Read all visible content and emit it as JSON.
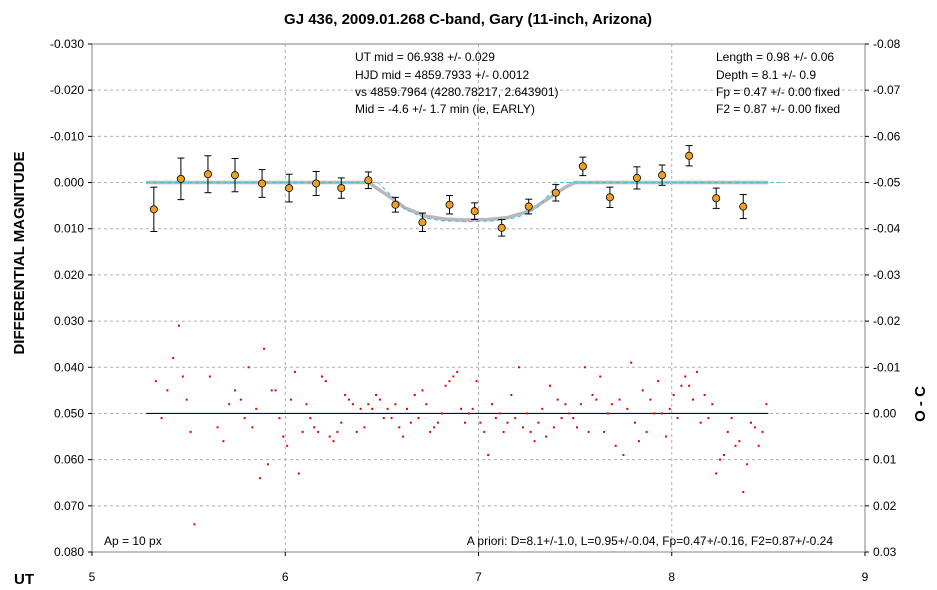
{
  "chart_data": {
    "type": "scatter",
    "title": "GJ 436, 2009.01.268 C-band, Gary (11-inch, Arizona)",
    "xlabel": "UT",
    "ylabel": "DIFFERENTIAL MAGNITUDE",
    "y2label": "O - C",
    "xlim": [
      5,
      9
    ],
    "ylim": [
      -0.03,
      0.08
    ],
    "y2lim": [
      -0.08,
      0.03
    ],
    "y_inverted": true,
    "grid": true,
    "x_ticks": [
      "5",
      "6",
      "7",
      "8",
      "9"
    ],
    "y_ticks": [
      "-0.030",
      "-0.020",
      "-0.010",
      "0.000",
      "0.010",
      "0.020",
      "0.030",
      "0.040",
      "0.050",
      "0.060",
      "0.070",
      "0.080"
    ],
    "y2_ticks": [
      "-0.08",
      "-0.07",
      "-0.06",
      "-0.05",
      "-0.04",
      "-0.03",
      "-0.02",
      "-0.01",
      "0.00",
      "0.01",
      "0.02",
      "0.03"
    ],
    "annotations": {
      "center": [
        "UT mid = 06.938 +/- 0.029",
        "HJD mid = 4859.7933 +/- 0.0012",
        "vs 4859.7964  (4280.78217, 2.643901)",
        "Mid = -4.6 +/- 1.7 min (ie, EARLY)"
      ],
      "right": [
        "Length = 0.98 +/- 0.06",
        "Depth = 8.1 +/- 0.9",
        "Fp = 0.47 +/- 0.00 fixed",
        "F2 = 0.87 +/- 0.00 fixed"
      ],
      "bottom_left": "Ap = 10 px",
      "bottom_right": "A priori: D=8.1+/-1.0, L=0.95+/-0.04, Fp=0.47+/-0.16, F2=0.87+/-0.24"
    },
    "colors": {
      "binned_points": "#f0a020",
      "model_fit": "#b8b8b8",
      "a_priori_model": "#40c0e0",
      "residual_points": "#e00000",
      "residual_zero_line": "#000080",
      "grid": "#b0b0b0"
    },
    "binned_points": [
      {
        "x": 5.32,
        "y": 0.0058,
        "err": 0.0048
      },
      {
        "x": 5.46,
        "y": -0.0008,
        "err": 0.0045
      },
      {
        "x": 5.6,
        "y": -0.0018,
        "err": 0.004
      },
      {
        "x": 5.74,
        "y": -0.0016,
        "err": 0.0036
      },
      {
        "x": 5.88,
        "y": 0.0002,
        "err": 0.003
      },
      {
        "x": 6.02,
        "y": 0.0012,
        "err": 0.003
      },
      {
        "x": 6.16,
        "y": 0.0002,
        "err": 0.0026
      },
      {
        "x": 6.29,
        "y": 0.0012,
        "err": 0.0022
      },
      {
        "x": 6.43,
        "y": -0.0005,
        "err": 0.0018
      },
      {
        "x": 6.57,
        "y": 0.0048,
        "err": 0.0016
      },
      {
        "x": 6.71,
        "y": 0.0086,
        "err": 0.002
      },
      {
        "x": 6.85,
        "y": 0.0048,
        "err": 0.002
      },
      {
        "x": 6.98,
        "y": 0.0062,
        "err": 0.0018
      },
      {
        "x": 7.12,
        "y": 0.0098,
        "err": 0.0018
      },
      {
        "x": 7.26,
        "y": 0.0052,
        "err": 0.0016
      },
      {
        "x": 7.4,
        "y": 0.0022,
        "err": 0.0018
      },
      {
        "x": 7.54,
        "y": -0.0035,
        "err": 0.002
      },
      {
        "x": 7.68,
        "y": 0.0032,
        "err": 0.0022
      },
      {
        "x": 7.82,
        "y": -0.001,
        "err": 0.0024
      },
      {
        "x": 7.95,
        "y": -0.0016,
        "err": 0.0022
      },
      {
        "x": 8.09,
        "y": -0.0058,
        "err": 0.0022
      },
      {
        "x": 8.23,
        "y": 0.0034,
        "err": 0.0022
      },
      {
        "x": 8.37,
        "y": 0.0052,
        "err": 0.0026
      }
    ],
    "model_fit": [
      [
        5.28,
        0.0
      ],
      [
        6.43,
        0.0
      ],
      [
        6.52,
        0.0025
      ],
      [
        6.62,
        0.0055
      ],
      [
        6.72,
        0.0072
      ],
      [
        6.82,
        0.0079
      ],
      [
        6.93,
        0.0081
      ],
      [
        7.05,
        0.008
      ],
      [
        7.15,
        0.0076
      ],
      [
        7.26,
        0.0062
      ],
      [
        7.36,
        0.0035
      ],
      [
        7.45,
        0.001
      ],
      [
        7.5,
        0.0
      ],
      [
        8.5,
        0.0
      ]
    ],
    "a_priori_model": [
      [
        5.28,
        0.0
      ],
      [
        6.48,
        0.0
      ],
      [
        6.62,
        0.0058
      ],
      [
        6.72,
        0.0077
      ],
      [
        6.82,
        0.0083
      ],
      [
        6.95,
        0.0085
      ],
      [
        7.08,
        0.0083
      ],
      [
        7.2,
        0.0076
      ],
      [
        7.3,
        0.0056
      ],
      [
        7.42,
        0.0
      ],
      [
        8.58,
        0.0
      ]
    ],
    "residuals_o_minus_c": [
      [
        5.33,
        -0.007
      ],
      [
        5.36,
        0.001
      ],
      [
        5.39,
        -0.005
      ],
      [
        5.42,
        -0.012
      ],
      [
        5.45,
        -0.019
      ],
      [
        5.47,
        -0.008
      ],
      [
        5.49,
        -0.003
      ],
      [
        5.51,
        0.004
      ],
      [
        5.53,
        0.024
      ],
      [
        5.61,
        -0.008
      ],
      [
        5.65,
        0.003
      ],
      [
        5.68,
        0.006
      ],
      [
        5.71,
        -0.002
      ],
      [
        5.74,
        -0.005
      ],
      [
        5.77,
        -0.003
      ],
      [
        5.79,
        0.001
      ],
      [
        5.81,
        -0.01
      ],
      [
        5.83,
        0.003
      ],
      [
        5.85,
        -0.001
      ],
      [
        5.87,
        0.014
      ],
      [
        5.89,
        -0.014
      ],
      [
        5.91,
        0.011
      ],
      [
        5.93,
        -0.005
      ],
      [
        5.95,
        -0.005
      ],
      [
        5.97,
        0.001
      ],
      [
        5.99,
        0.005
      ],
      [
        6.01,
        0.007
      ],
      [
        6.03,
        -0.003
      ],
      [
        6.05,
        -0.009
      ],
      [
        6.07,
        0.013
      ],
      [
        6.09,
        0.004
      ],
      [
        6.11,
        -0.002
      ],
      [
        6.13,
        0.001
      ],
      [
        6.15,
        0.003
      ],
      [
        6.17,
        0.004
      ],
      [
        6.19,
        -0.008
      ],
      [
        6.21,
        -0.007
      ],
      [
        6.23,
        0.005
      ],
      [
        6.25,
        0.006
      ],
      [
        6.27,
        0.004
      ],
      [
        6.29,
        0.002
      ],
      [
        6.31,
        -0.004
      ],
      [
        6.33,
        -0.003
      ],
      [
        6.35,
        -0.002
      ],
      [
        6.37,
        0.004
      ],
      [
        6.39,
        -0.001
      ],
      [
        6.41,
        0.003
      ],
      [
        6.43,
        -0.002
      ],
      [
        6.45,
        -0.001
      ],
      [
        6.47,
        -0.004
      ],
      [
        6.49,
        -0.003
      ],
      [
        6.51,
        0.001
      ],
      [
        6.53,
        -0.001
      ],
      [
        6.55,
        0.001
      ],
      [
        6.57,
        -0.002
      ],
      [
        6.59,
        0.003
      ],
      [
        6.61,
        0.005
      ],
      [
        6.63,
        -0.001
      ],
      [
        6.65,
        0.002
      ],
      [
        6.67,
        -0.004
      ],
      [
        6.69,
        0.001
      ],
      [
        6.71,
        -0.005
      ],
      [
        6.73,
        -0.002
      ],
      [
        6.75,
        0.004
      ],
      [
        6.77,
        0.003
      ],
      [
        6.79,
        0.002
      ],
      [
        6.81,
        0.0
      ],
      [
        6.83,
        -0.006
      ],
      [
        6.85,
        -0.007
      ],
      [
        6.87,
        -0.008
      ],
      [
        6.89,
        -0.009
      ],
      [
        6.91,
        -0.001
      ],
      [
        6.93,
        0.002
      ],
      [
        6.95,
        0.0
      ],
      [
        6.97,
        -0.001
      ],
      [
        6.99,
        -0.007
      ],
      [
        7.01,
        0.002
      ],
      [
        7.03,
        0.004
      ],
      [
        7.05,
        0.009
      ],
      [
        7.07,
        -0.002
      ],
      [
        7.09,
        0.001
      ],
      [
        7.11,
        0.0
      ],
      [
        7.13,
        0.004
      ],
      [
        7.15,
        0.002
      ],
      [
        7.17,
        -0.004
      ],
      [
        7.19,
        0.001
      ],
      [
        7.21,
        -0.01
      ],
      [
        7.23,
        0.003
      ],
      [
        7.25,
        0.0
      ],
      [
        7.27,
        0.004
      ],
      [
        7.29,
        0.006
      ],
      [
        7.31,
        0.002
      ],
      [
        7.33,
        -0.001
      ],
      [
        7.35,
        0.005
      ],
      [
        7.37,
        -0.006
      ],
      [
        7.39,
        0.003
      ],
      [
        7.41,
        -0.003
      ],
      [
        7.43,
        0.001
      ],
      [
        7.45,
        -0.002
      ],
      [
        7.47,
        0.0
      ],
      [
        7.49,
        0.001
      ],
      [
        7.51,
        0.003
      ],
      [
        7.53,
        -0.002
      ],
      [
        7.55,
        -0.01
      ],
      [
        7.57,
        0.004
      ],
      [
        7.59,
        -0.004
      ],
      [
        7.61,
        -0.003
      ],
      [
        7.63,
        -0.008
      ],
      [
        7.65,
        0.004
      ],
      [
        7.67,
        0.0
      ],
      [
        7.69,
        -0.002
      ],
      [
        7.71,
        0.007
      ],
      [
        7.73,
        -0.003
      ],
      [
        7.75,
        0.009
      ],
      [
        7.77,
        -0.001
      ],
      [
        7.79,
        -0.011
      ],
      [
        7.81,
        0.002
      ],
      [
        7.83,
        0.006
      ],
      [
        7.85,
        -0.005
      ],
      [
        7.87,
        0.004
      ],
      [
        7.89,
        -0.003
      ],
      [
        7.91,
        0.0
      ],
      [
        7.93,
        -0.007
      ],
      [
        7.95,
        0.0
      ],
      [
        7.97,
        0.005
      ],
      [
        7.99,
        -0.001
      ],
      [
        8.01,
        -0.004
      ],
      [
        8.03,
        0.001
      ],
      [
        8.05,
        -0.006
      ],
      [
        8.07,
        -0.008
      ],
      [
        8.09,
        -0.006
      ],
      [
        8.11,
        -0.003
      ],
      [
        8.13,
        -0.009
      ],
      [
        8.15,
        0.002
      ],
      [
        8.17,
        -0.004
      ],
      [
        8.19,
        0.001
      ],
      [
        8.21,
        -0.002
      ],
      [
        8.23,
        0.013
      ],
      [
        8.25,
        0.01
      ],
      [
        8.27,
        0.009
      ],
      [
        8.29,
        0.004
      ],
      [
        8.31,
        0.001
      ],
      [
        8.33,
        0.007
      ],
      [
        8.35,
        0.006
      ],
      [
        8.37,
        0.017
      ],
      [
        8.39,
        0.011
      ],
      [
        8.41,
        0.002
      ],
      [
        8.43,
        0.003
      ],
      [
        8.45,
        0.007
      ],
      [
        8.47,
        0.004
      ],
      [
        8.49,
        -0.002
      ]
    ]
  }
}
